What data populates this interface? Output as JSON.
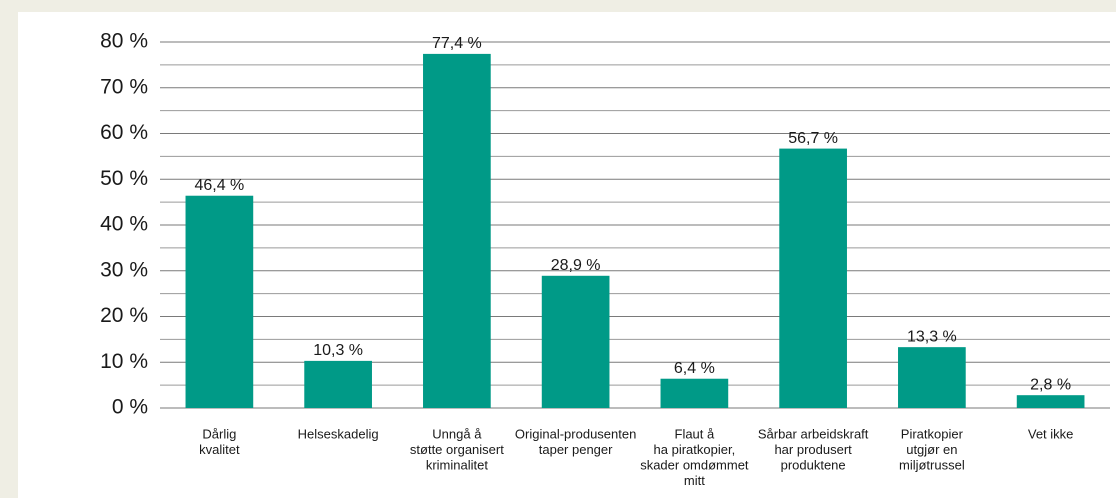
{
  "chart_data": {
    "type": "bar",
    "categories": [
      [
        "Dårlig",
        "kvalitet"
      ],
      [
        "Helseskadelig"
      ],
      [
        "Unngå å",
        "støtte organisert",
        "kriminalitet"
      ],
      [
        "Original-produsenten",
        "taper penger"
      ],
      [
        "Flaut å",
        "ha piratkopier,",
        "skader omdømmet",
        "mitt"
      ],
      [
        "Sårbar arbeidskraft",
        "har produsert",
        "produktene"
      ],
      [
        "Piratkopier",
        "utgjør en",
        "miljøtrussel"
      ],
      [
        "Vet ikke"
      ]
    ],
    "values": [
      46.4,
      10.3,
      77.4,
      28.9,
      6.4,
      56.7,
      13.3,
      2.8
    ],
    "value_labels": [
      "46,4 %",
      "10,3 %",
      "77,4 %",
      "28,9 %",
      "6,4 %",
      "56,7 %",
      "13,3 %",
      "2,8 %"
    ],
    "color": "#009a87",
    "ylim": [
      0,
      80
    ],
    "yticks": [
      {
        "value": 0,
        "label": "0 %"
      },
      {
        "value": 10,
        "label": "10 %"
      },
      {
        "value": 20,
        "label": "20 %"
      },
      {
        "value": 30,
        "label": "30 %"
      },
      {
        "value": 40,
        "label": "40 %"
      },
      {
        "value": 50,
        "label": "50 %"
      },
      {
        "value": 60,
        "label": "60 %"
      },
      {
        "value": 70,
        "label": "70 %"
      },
      {
        "value": 80,
        "label": "80 %"
      }
    ],
    "minor_yticks": [
      5,
      15,
      25,
      35,
      45,
      55,
      65,
      75
    ],
    "grid": true
  }
}
